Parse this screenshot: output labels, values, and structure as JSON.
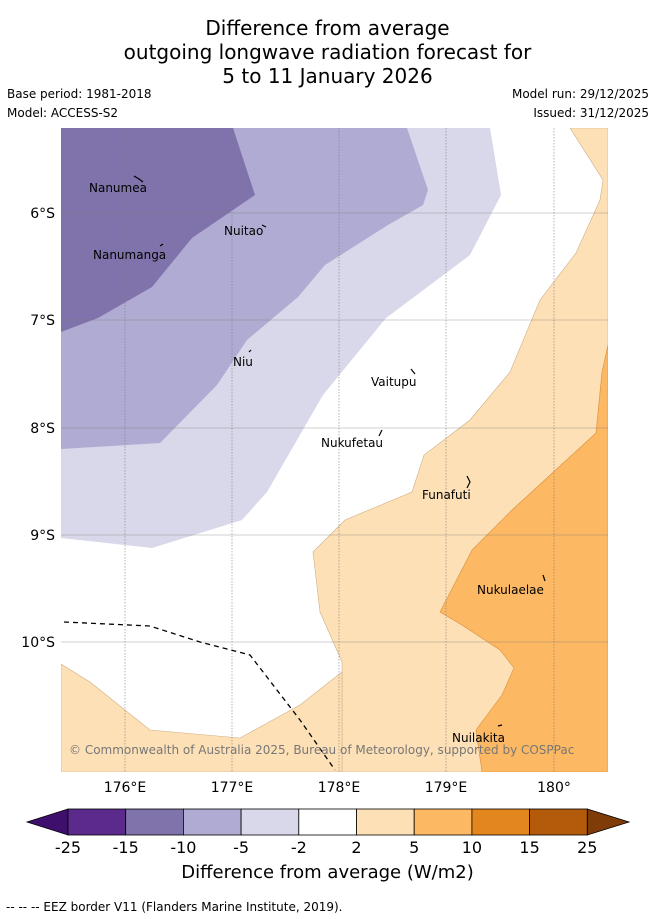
{
  "title": {
    "line1": "Difference from average",
    "line2": "outgoing longwave radiation forecast for",
    "line3": "5 to 11 January 2026"
  },
  "meta": {
    "base_period": "Base period: 1981-2018",
    "model": "Model: ACCESS-S2",
    "model_run": "Model run: 29/12/2025",
    "issued": "Issued: 31/12/2025"
  },
  "map": {
    "lat_labels": [
      "6°S",
      "7°S",
      "8°S",
      "9°S",
      "10°S"
    ],
    "lon_labels": [
      "176°E",
      "177°E",
      "178°E",
      "179°E",
      "180°"
    ],
    "places": [
      "Nanumea",
      "Nuitao",
      "Nanumanga",
      "Niu",
      "Vaitupu",
      "Nukufetau",
      "Funafuti",
      "Nukulaelae",
      "Nuilakita"
    ],
    "copyright": "© Commonwealth of Australia 2025, Bureau of Meteorology, supported by COSPPac"
  },
  "colorbar": {
    "ticks": [
      "-25",
      "-15",
      "-10",
      "-5",
      "-2",
      "2",
      "5",
      "10",
      "15",
      "25"
    ],
    "colors": [
      "#3f0f6e",
      "#5b2a8c",
      "#8073ab",
      "#b0abd2",
      "#d8d8ea",
      "#ffffff",
      "#fde0b6",
      "#fcb862",
      "#e3861d",
      "#b45a0b",
      "#7f3b08"
    ],
    "title": "Difference from average (W/m2)"
  },
  "footer": "-- -- -- EEZ border V11 (Flanders Marine Institute, 2019)."
}
